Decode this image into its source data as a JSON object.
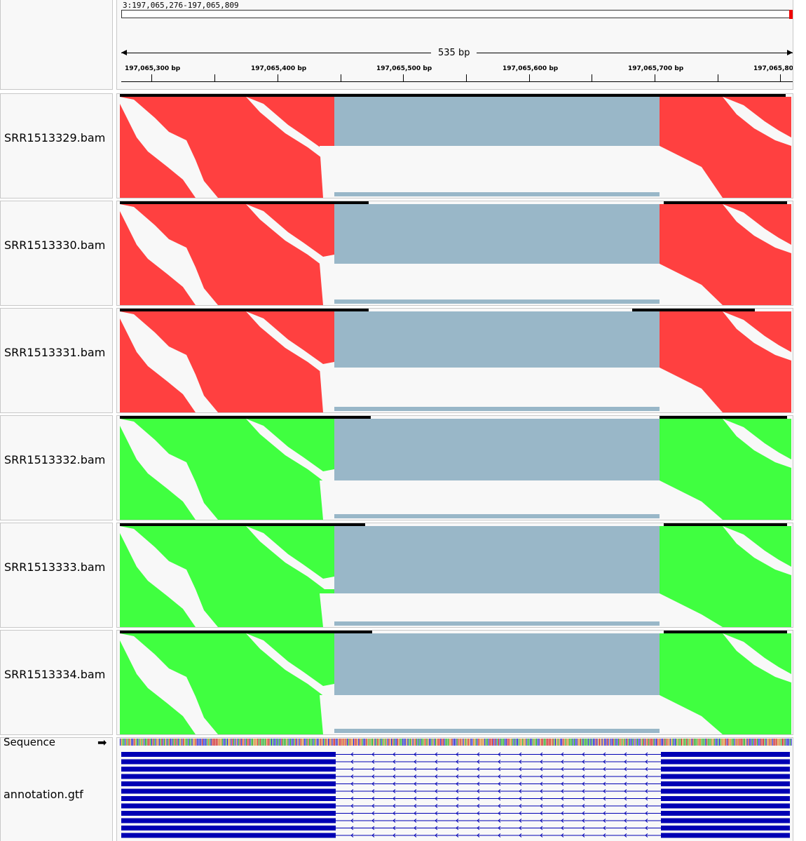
{
  "ruler": {
    "locus": "3:197,065,276-197,065,809",
    "span_label": "535 bp",
    "ticks": [
      "197,065,300 bp",
      "197,065,400 bp",
      "197,065,500 bp",
      "197,065,600 bp",
      "197,065,700 bp",
      "197,065,80"
    ]
  },
  "tracks": [
    {
      "name": "SRR1513329.bam",
      "color": "#ff4040"
    },
    {
      "name": "SRR1513330.bam",
      "color": "#ff4040"
    },
    {
      "name": "SRR1513331.bam",
      "color": "#ff4040"
    },
    {
      "name": "SRR1513332.bam",
      "color": "#40ff40"
    },
    {
      "name": "SRR1513333.bam",
      "color": "#40ff40"
    },
    {
      "name": "SRR1513334.bam",
      "color": "#40ff40"
    }
  ],
  "sequence": {
    "label": "Sequence",
    "strand_arrow": "➡"
  },
  "annotation": {
    "label": "annotation.gtf",
    "color": "#0000b4"
  },
  "colors": {
    "junction": "#99b7c8",
    "background": "#f8f8f8"
  }
}
